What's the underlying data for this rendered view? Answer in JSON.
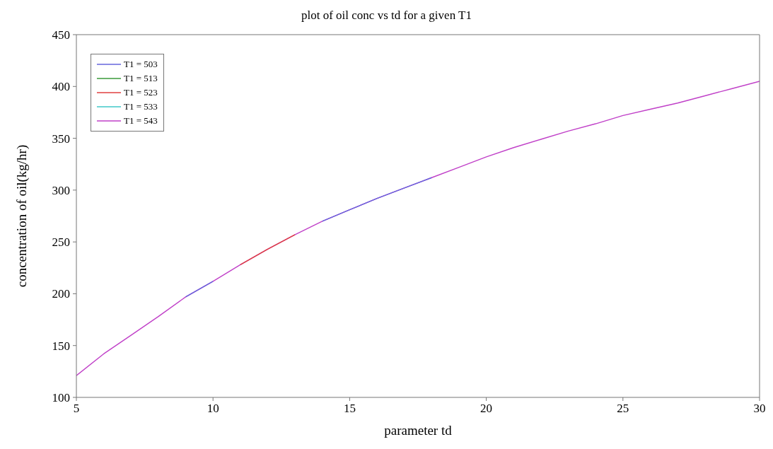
{
  "chart_data": {
    "type": "line",
    "title": "plot of oil conc vs td for a given T1",
    "xlabel": "parameter td",
    "ylabel": "concentration of oil(kg/hr)",
    "x": [
      5,
      6,
      7,
      8,
      9,
      10,
      11,
      12,
      13,
      14,
      15,
      16,
      17,
      18,
      19,
      20,
      21,
      22,
      23,
      24,
      25,
      26,
      27,
      28,
      29,
      30
    ],
    "series": [
      {
        "name": "T1 = 503",
        "color": "#6666dd",
        "values": [
          null,
          null,
          null,
          null,
          197,
          212,
          null,
          null,
          null,
          270,
          281,
          292,
          302,
          312,
          null,
          null,
          null,
          null,
          null,
          null,
          null,
          null,
          null,
          null,
          null,
          null
        ]
      },
      {
        "name": "T1 = 513",
        "color": "#3a9a3a",
        "values": [
          null,
          null,
          null,
          null,
          null,
          null,
          null,
          null,
          null,
          null,
          null,
          null,
          null,
          null,
          null,
          null,
          null,
          null,
          null,
          null,
          null,
          null,
          null,
          null,
          null,
          null
        ]
      },
      {
        "name": "T1 = 523",
        "color": "#e04040",
        "values": [
          null,
          null,
          null,
          null,
          null,
          null,
          228,
          243,
          257,
          null,
          null,
          null,
          null,
          null,
          null,
          null,
          null,
          null,
          null,
          null,
          null,
          null,
          null,
          null,
          null,
          null
        ]
      },
      {
        "name": "T1 = 533",
        "color": "#40c8c8",
        "values": [
          null,
          null,
          null,
          null,
          null,
          null,
          null,
          null,
          null,
          null,
          null,
          null,
          null,
          null,
          null,
          null,
          null,
          null,
          null,
          null,
          null,
          null,
          null,
          null,
          null,
          null
        ]
      },
      {
        "name": "T1 = 543",
        "color": "#c040c8",
        "values": [
          121,
          142,
          160,
          178,
          197,
          212,
          228,
          243,
          257,
          270,
          281,
          292,
          302,
          312,
          322,
          332,
          341,
          349,
          357,
          364,
          372,
          378,
          384,
          391,
          398,
          405
        ]
      }
    ],
    "xlim": [
      5,
      30
    ],
    "xticks": [
      5,
      10,
      15,
      20,
      25,
      30
    ],
    "ylim": [
      100,
      450
    ],
    "yticks": [
      100,
      150,
      200,
      250,
      300,
      350,
      400,
      450
    ],
    "grid": false,
    "legend": "top left",
    "marker": "none",
    "line_style": "solid"
  }
}
